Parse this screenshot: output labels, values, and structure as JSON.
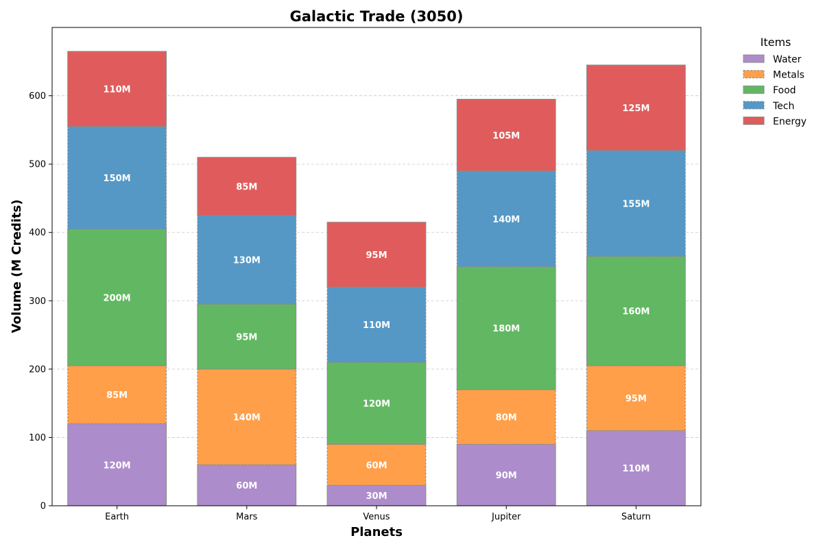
{
  "chart_data": {
    "type": "bar",
    "stacked": true,
    "title": "Galactic Trade (3050)",
    "xlabel": "Planets",
    "ylabel": "Volume (M Credits)",
    "categories": [
      "Earth",
      "Mars",
      "Venus",
      "Jupiter",
      "Saturn"
    ],
    "ylim": [
      0,
      700
    ],
    "yticks": [
      0,
      100,
      200,
      300,
      400,
      500,
      600
    ],
    "grid": "y-dashed",
    "legend": {
      "title": "Items",
      "placement": "outside-top-right"
    },
    "value_label_suffix": "M",
    "series": [
      {
        "name": "Water",
        "color": "#ad8ccc",
        "dashed": false,
        "values": [
          120,
          60,
          30,
          90,
          110
        ]
      },
      {
        "name": "Metals",
        "color": "#ff9f4a",
        "dashed": true,
        "values": [
          85,
          140,
          60,
          80,
          95
        ]
      },
      {
        "name": "Food",
        "color": "#62b862",
        "dashed": false,
        "values": [
          200,
          95,
          120,
          180,
          160
        ]
      },
      {
        "name": "Tech",
        "color": "#5598c6",
        "dashed": true,
        "values": [
          150,
          130,
          110,
          140,
          155
        ]
      },
      {
        "name": "Energy",
        "color": "#e05c5c",
        "dashed": false,
        "values": [
          110,
          85,
          95,
          105,
          125
        ]
      }
    ]
  }
}
